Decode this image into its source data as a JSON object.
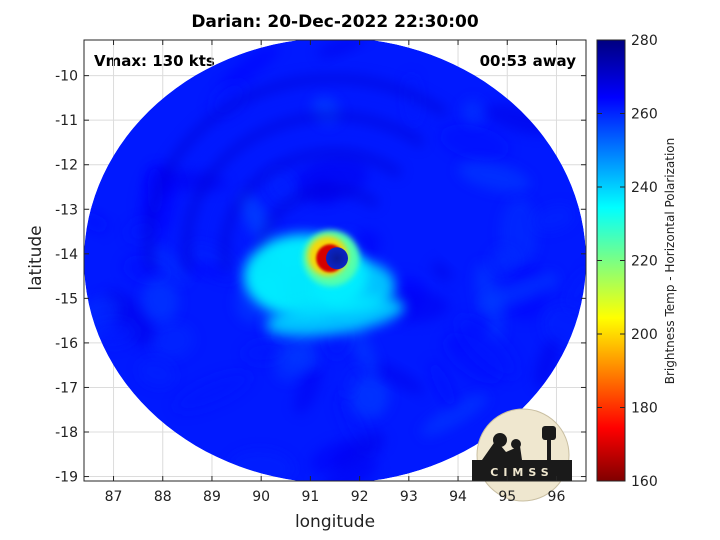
{
  "chart_data": {
    "type": "heatmap",
    "title": "Darian: 20-Dec-2022 22:30:00",
    "xlabel": "longitude",
    "ylabel": "latitude",
    "xlim": [
      86.4,
      96.6
    ],
    "ylim": [
      -19.1,
      -9.2
    ],
    "xticks": [
      87,
      88,
      89,
      90,
      91,
      92,
      93,
      94,
      95,
      96
    ],
    "yticks": [
      -10,
      -11,
      -12,
      -13,
      -14,
      -15,
      -16,
      -17,
      -18,
      -19
    ],
    "grid": true,
    "annotations": {
      "vmax": "Vmax: 130 kts",
      "time_away": "00:53 away"
    },
    "storm_center": {
      "lon": 91.5,
      "lat": -14.1
    },
    "swath_center": {
      "lon": 91.5,
      "lat": -14.15
    },
    "swath_radius_deg": {
      "lon": 5.1,
      "lat": 5.0
    },
    "features": [
      {
        "name": "background",
        "tb": 262
      },
      {
        "name": "eye",
        "lon": 91.5,
        "lat": -14.1,
        "tb": 268
      },
      {
        "name": "eyewall",
        "lon": 91.4,
        "lat": -14.1,
        "tb": 170
      },
      {
        "name": "inner-ring",
        "lon": 91.35,
        "lat": -14.05,
        "tb": 200
      },
      {
        "name": "spiral-band",
        "lon": 90.9,
        "lat": -14.5,
        "tb": 235
      }
    ],
    "colorbar": {
      "label": "Brightness Temp - Horizontal Polarization",
      "min": 160,
      "max": 280,
      "ticks": [
        160,
        180,
        200,
        220,
        240,
        260,
        280
      ],
      "colormap": "jet"
    },
    "logo_text": "CIMSS"
  }
}
